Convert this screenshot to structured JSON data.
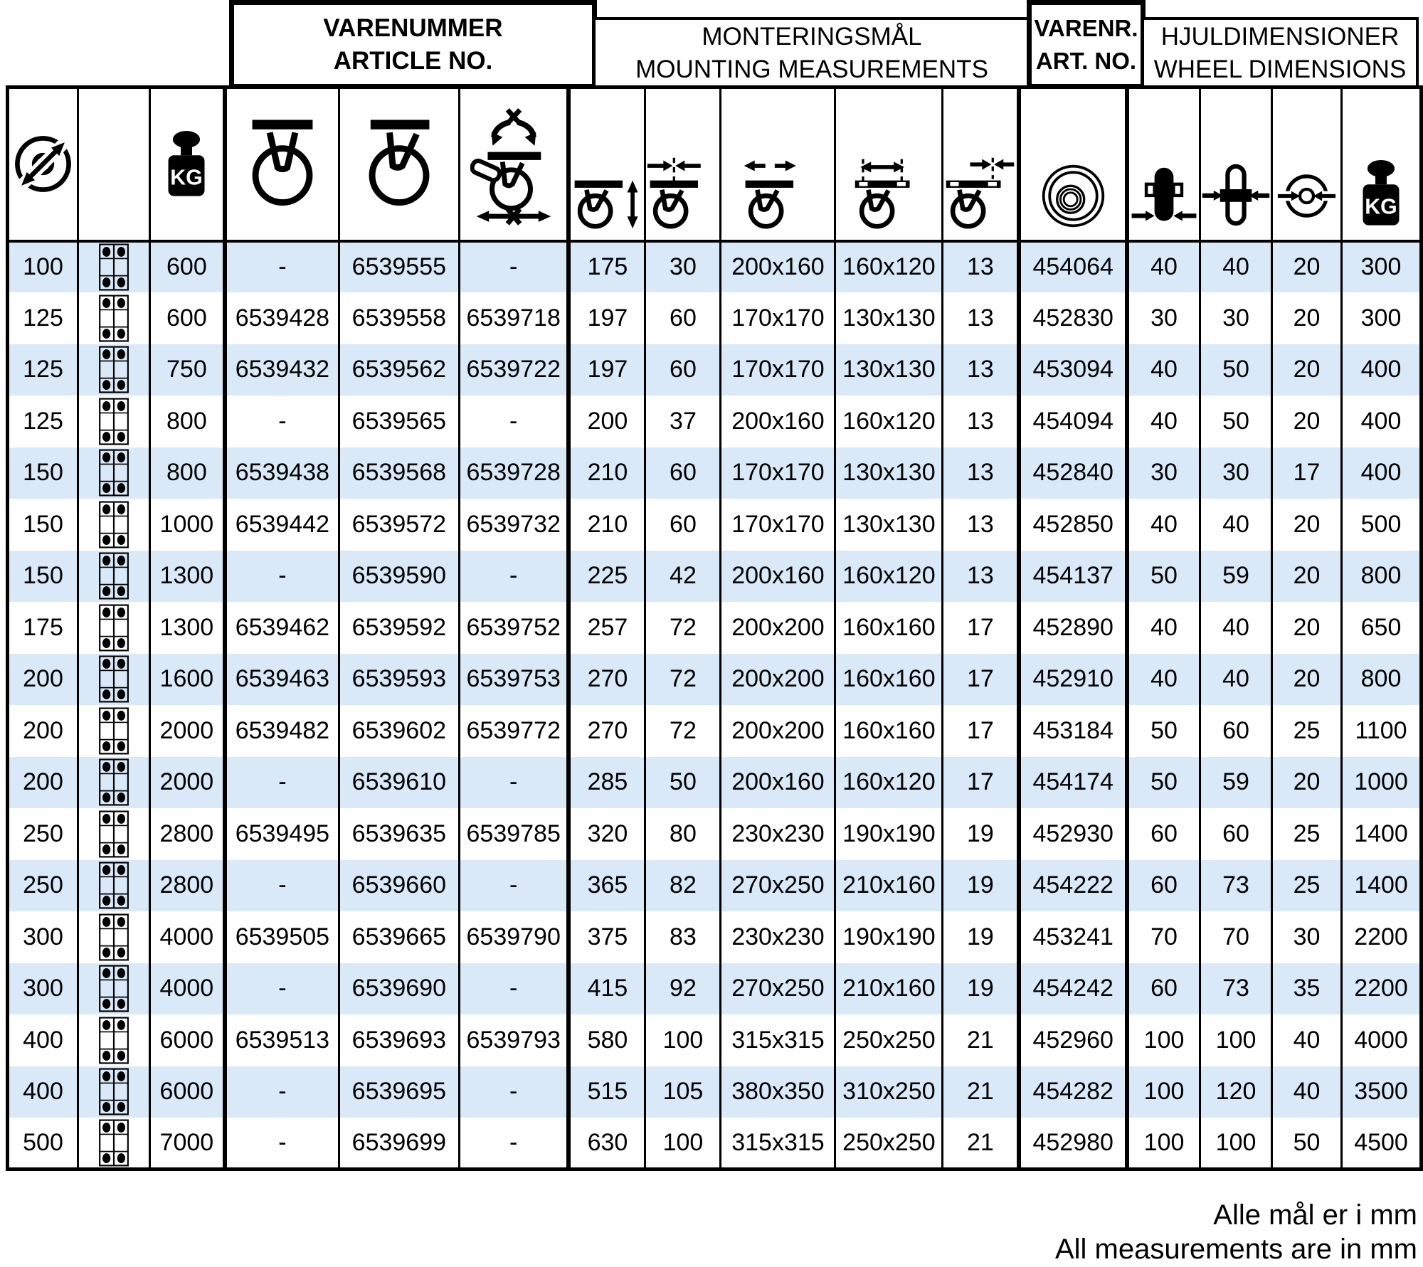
{
  "groups": [
    {
      "line1": "VARENUMMER",
      "line2": "ARTICLE NO."
    },
    {
      "line1": "MONTERINGSMÅL",
      "line2": "MOUNTING MEASUREMENTS"
    },
    {
      "line1": "VARENR.",
      "line2": "ART. NO."
    },
    {
      "line1": "HJULDIMENSIONER",
      "line2": "WHEEL DIMENSIONS"
    }
  ],
  "icons": {
    "kg_label": "KG",
    "names": [
      "wheel-diameter-icon",
      "bolt-pattern-icon",
      "weight-kg-icon",
      "fixed-caster-icon",
      "swivel-caster-icon",
      "swivel-total-brake-caster-icon",
      "mounting-height-icon",
      "swivel-offset-icon",
      "plate-size-icon",
      "bolt-hole-spacing-icon",
      "bolt-hole-diameter-icon",
      "wheel-icon",
      "wheel-width-icon",
      "hub-length-icon",
      "bore-diameter-icon",
      "max-load-kg-icon"
    ]
  },
  "table": {
    "columns": [
      {
        "key": "wheel-diameter",
        "icon": "wheel-diameter-icon"
      },
      {
        "key": "bolt-pattern",
        "icon": "bolt-pattern-icon",
        "type": "icon"
      },
      {
        "key": "load-capacity",
        "icon": "weight-kg-icon"
      },
      {
        "key": "article-no-fixed",
        "icon": "fixed-caster-icon",
        "group": "article-no"
      },
      {
        "key": "article-no-swivel",
        "icon": "swivel-caster-icon",
        "group": "article-no"
      },
      {
        "key": "article-no-swivel-total-brake",
        "icon": "swivel-total-brake-caster-icon",
        "group": "article-no"
      },
      {
        "key": "mounting-height",
        "icon": "mounting-height-icon",
        "group": "mounting"
      },
      {
        "key": "swivel-offset",
        "icon": "swivel-offset-icon",
        "group": "mounting"
      },
      {
        "key": "plate-size",
        "icon": "plate-size-icon",
        "group": "mounting"
      },
      {
        "key": "bolt-hole-spacing",
        "icon": "bolt-hole-spacing-icon",
        "group": "mounting"
      },
      {
        "key": "bolt-hole-diameter",
        "icon": "bolt-hole-diameter-icon",
        "group": "mounting"
      },
      {
        "key": "wheel-article-no",
        "icon": "wheel-icon",
        "group": "wheel-article-no"
      },
      {
        "key": "wheel-width",
        "icon": "wheel-width-icon",
        "group": "wheel-dimensions"
      },
      {
        "key": "hub-length",
        "icon": "hub-length-icon",
        "group": "wheel-dimensions"
      },
      {
        "key": "bore-diameter",
        "icon": "bore-diameter-icon",
        "group": "wheel-dimensions"
      },
      {
        "key": "max-load",
        "icon": "max-load-kg-icon",
        "group": "wheel-dimensions"
      }
    ],
    "rows": [
      [
        "100",
        "",
        "600",
        "-",
        "6539555",
        "-",
        "175",
        "30",
        "200x160",
        "160x120",
        "13",
        "454064",
        "40",
        "40",
        "20",
        "300"
      ],
      [
        "125",
        "",
        "600",
        "6539428",
        "6539558",
        "6539718",
        "197",
        "60",
        "170x170",
        "130x130",
        "13",
        "452830",
        "30",
        "30",
        "20",
        "300"
      ],
      [
        "125",
        "",
        "750",
        "6539432",
        "6539562",
        "6539722",
        "197",
        "60",
        "170x170",
        "130x130",
        "13",
        "453094",
        "40",
        "50",
        "20",
        "400"
      ],
      [
        "125",
        "",
        "800",
        "-",
        "6539565",
        "-",
        "200",
        "37",
        "200x160",
        "160x120",
        "13",
        "454094",
        "40",
        "50",
        "20",
        "400"
      ],
      [
        "150",
        "",
        "800",
        "6539438",
        "6539568",
        "6539728",
        "210",
        "60",
        "170x170",
        "130x130",
        "13",
        "452840",
        "30",
        "30",
        "17",
        "400"
      ],
      [
        "150",
        "",
        "1000",
        "6539442",
        "6539572",
        "6539732",
        "210",
        "60",
        "170x170",
        "130x130",
        "13",
        "452850",
        "40",
        "40",
        "20",
        "500"
      ],
      [
        "150",
        "",
        "1300",
        "-",
        "6539590",
        "-",
        "225",
        "42",
        "200x160",
        "160x120",
        "13",
        "454137",
        "50",
        "59",
        "20",
        "800"
      ],
      [
        "175",
        "",
        "1300",
        "6539462",
        "6539592",
        "6539752",
        "257",
        "72",
        "200x200",
        "160x160",
        "17",
        "452890",
        "40",
        "40",
        "20",
        "650"
      ],
      [
        "200",
        "",
        "1600",
        "6539463",
        "6539593",
        "6539753",
        "270",
        "72",
        "200x200",
        "160x160",
        "17",
        "452910",
        "40",
        "40",
        "20",
        "800"
      ],
      [
        "200",
        "",
        "2000",
        "6539482",
        "6539602",
        "6539772",
        "270",
        "72",
        "200x200",
        "160x160",
        "17",
        "453184",
        "50",
        "60",
        "25",
        "1100"
      ],
      [
        "200",
        "",
        "2000",
        "-",
        "6539610",
        "-",
        "285",
        "50",
        "200x160",
        "160x120",
        "17",
        "454174",
        "50",
        "59",
        "20",
        "1000"
      ],
      [
        "250",
        "",
        "2800",
        "6539495",
        "6539635",
        "6539785",
        "320",
        "80",
        "230x230",
        "190x190",
        "19",
        "452930",
        "60",
        "60",
        "25",
        "1400"
      ],
      [
        "250",
        "",
        "2800",
        "-",
        "6539660",
        "-",
        "365",
        "82",
        "270x250",
        "210x160",
        "19",
        "454222",
        "60",
        "73",
        "25",
        "1400"
      ],
      [
        "300",
        "",
        "4000",
        "6539505",
        "6539665",
        "6539790",
        "375",
        "83",
        "230x230",
        "190x190",
        "19",
        "453241",
        "70",
        "70",
        "30",
        "2200"
      ],
      [
        "300",
        "",
        "4000",
        "-",
        "6539690",
        "-",
        "415",
        "92",
        "270x250",
        "210x160",
        "19",
        "454242",
        "60",
        "73",
        "35",
        "2200"
      ],
      [
        "400",
        "",
        "6000",
        "6539513",
        "6539693",
        "6539793",
        "580",
        "100",
        "315x315",
        "250x250",
        "21",
        "452960",
        "100",
        "100",
        "40",
        "4000"
      ],
      [
        "400",
        "",
        "6000",
        "-",
        "6539695",
        "-",
        "515",
        "105",
        "380x350",
        "310x250",
        "21",
        "454282",
        "100",
        "120",
        "40",
        "3500"
      ],
      [
        "500",
        "",
        "7000",
        "-",
        "6539699",
        "-",
        "630",
        "100",
        "315x315",
        "250x250",
        "21",
        "452980",
        "100",
        "100",
        "50",
        "4500"
      ]
    ]
  },
  "footer": {
    "line1": "Alle mål er i mm",
    "line2": "All measurements are in mm"
  },
  "colors": {
    "row_alt": "#d9e9f8",
    "border": "#000000",
    "text": "#000000",
    "background": "#ffffff"
  }
}
